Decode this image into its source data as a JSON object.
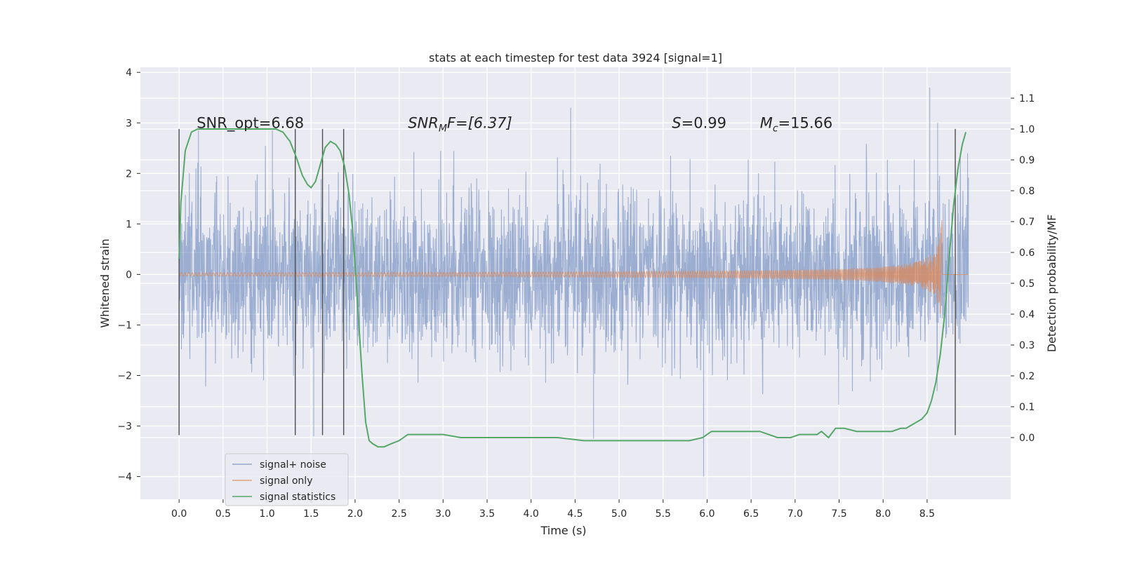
{
  "chart_data": {
    "type": "line",
    "title": "stats at each timestep for test data 3924 [signal=1]",
    "xlabel": "Time (s)",
    "ylabel_left": "Whitened strain",
    "ylabel_right": "Detection probability/MF",
    "xlim": [
      -0.44,
      9.45
    ],
    "ylim_left": [
      -4.45,
      4.1
    ],
    "ylim_right": [
      -0.2,
      1.2
    ],
    "x_ticks": [
      0.0,
      0.5,
      1.0,
      1.5,
      2.0,
      2.5,
      3.0,
      3.5,
      4.0,
      4.5,
      5.0,
      5.5,
      6.0,
      6.5,
      7.0,
      7.5,
      8.0,
      8.5
    ],
    "x_tick_labels": [
      "0.0",
      "0.5",
      "1.0",
      "1.5",
      "2.0",
      "2.5",
      "3.0",
      "3.5",
      "4.0",
      "4.5",
      "5.0",
      "5.5",
      "6.0",
      "6.5",
      "7.0",
      "7.5",
      "8.0",
      "8.5"
    ],
    "y_left_ticks": [
      4,
      3,
      2,
      1,
      0,
      -1,
      -2,
      -3,
      -4
    ],
    "y_left_tick_labels": [
      "4",
      "3",
      "2",
      "1",
      "0",
      "−1",
      "−2",
      "−3",
      "−4"
    ],
    "y_right_ticks": [
      1.1,
      1.0,
      0.9,
      0.8,
      0.7,
      0.6,
      0.5,
      0.4,
      0.3,
      0.2,
      0.1,
      0.0
    ],
    "y_right_tick_labels": [
      "1.1",
      "1.0",
      "0.9",
      "0.8",
      "0.7",
      "0.6",
      "0.5",
      "0.4",
      "0.3",
      "0.2",
      "0.1",
      "0.0"
    ],
    "annotations": {
      "snr_opt": {
        "text": "SNR_opt=6.68",
        "x": 0.2,
        "y": 2.9
      },
      "snr_mf": {
        "text_prefix": "SNR",
        "text_sub": "M",
        "text_suffix": "F=[6.37]",
        "x": 2.6,
        "y": 2.9
      },
      "s": {
        "text_prefix": "S",
        "text_suffix": "=0.99",
        "x": 5.6,
        "y": 2.9
      },
      "mc": {
        "text_prefix": "M",
        "text_sub": "c",
        "text_suffix": "=15.66",
        "x": 6.6,
        "y": 2.9
      }
    },
    "vertical_lines": {
      "x": [
        0.0,
        1.32,
        1.63,
        1.87,
        8.82
      ],
      "ymin": -3.18,
      "ymax": 2.88,
      "color": "#4d4d4d"
    },
    "series": [
      {
        "name": "signal+ noise",
        "color": "#4c72b0",
        "axis": "left",
        "generated": true,
        "t_range": [
          0.0,
          8.97
        ],
        "band_sigma": 0.8,
        "peak_annotations": [
          [
            0.22,
            2.85
          ],
          [
            1.06,
            2.85
          ],
          [
            1.53,
            -3.2
          ],
          [
            4.45,
            3.3
          ],
          [
            4.71,
            -3.25
          ],
          [
            5.96,
            -4.0
          ],
          [
            8.53,
            3.7
          ],
          [
            8.62,
            3.0
          ],
          [
            8.96,
            2.4
          ]
        ]
      },
      {
        "name": "signal only",
        "color": "#dd8452",
        "axis": "left",
        "generated": true,
        "chirp_amplitude_end": 1.15,
        "chirp_end_time": 8.67
      },
      {
        "name": "signal statistics",
        "color": "#55a868",
        "axis": "right",
        "x": [
          0.0,
          0.02,
          0.07,
          0.14,
          0.21,
          0.3,
          0.45,
          0.6,
          0.8,
          1.0,
          1.1,
          1.18,
          1.26,
          1.33,
          1.4,
          1.46,
          1.5,
          1.55,
          1.6,
          1.66,
          1.72,
          1.78,
          1.83,
          1.88,
          1.93,
          1.97,
          2.0,
          2.04,
          2.08,
          2.12,
          2.16,
          2.2,
          2.26,
          2.33,
          2.41,
          2.5,
          2.6,
          2.8,
          3.0,
          3.2,
          3.45,
          3.7,
          4.0,
          4.3,
          4.6,
          4.9,
          5.2,
          5.5,
          5.8,
          5.95,
          6.05,
          6.2,
          6.4,
          6.6,
          6.8,
          6.95,
          7.05,
          7.15,
          7.25,
          7.3,
          7.38,
          7.46,
          7.56,
          7.7,
          7.8,
          7.9,
          8.0,
          8.1,
          8.2,
          8.26,
          8.32,
          8.38,
          8.44,
          8.5,
          8.55,
          8.6,
          8.65,
          8.7,
          8.75,
          8.8,
          8.85,
          8.9,
          8.94
        ],
        "y": [
          0.58,
          0.76,
          0.93,
          0.99,
          1.0,
          1.0,
          1.0,
          1.0,
          1.0,
          1.0,
          1.0,
          0.99,
          0.96,
          0.91,
          0.85,
          0.82,
          0.81,
          0.83,
          0.88,
          0.94,
          0.96,
          0.95,
          0.93,
          0.88,
          0.79,
          0.68,
          0.56,
          0.38,
          0.2,
          0.05,
          -0.01,
          -0.02,
          -0.03,
          -0.03,
          -0.02,
          -0.01,
          0.01,
          0.01,
          0.01,
          0.0,
          0.0,
          0.0,
          0.0,
          0.0,
          -0.01,
          -0.01,
          -0.01,
          -0.01,
          -0.01,
          0.0,
          0.02,
          0.02,
          0.02,
          0.02,
          0.0,
          0.0,
          0.01,
          0.01,
          0.01,
          0.02,
          0.0,
          0.03,
          0.03,
          0.02,
          0.02,
          0.02,
          0.02,
          0.02,
          0.03,
          0.03,
          0.04,
          0.05,
          0.06,
          0.08,
          0.12,
          0.18,
          0.27,
          0.4,
          0.58,
          0.75,
          0.87,
          0.95,
          0.99
        ]
      }
    ],
    "legend": {
      "position": "lower-left",
      "entries": [
        "signal+ noise",
        "signal only",
        "signal statistics"
      ]
    },
    "grid": true
  }
}
